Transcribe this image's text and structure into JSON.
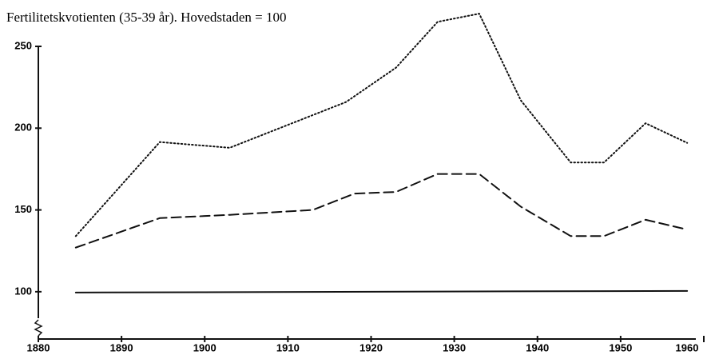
{
  "chart_data": {
    "type": "line",
    "title": "Fertilitetskvotienten (35-39 år). Hovedstaden = 100",
    "xlim": [
      1880,
      1960
    ],
    "xticks": [
      1880,
      1890,
      1900,
      1910,
      1920,
      1930,
      1940,
      1950,
      1960
    ],
    "ylim": [
      75,
      250
    ],
    "yticks": [
      100,
      150,
      200,
      250
    ],
    "series": [
      {
        "color": "#111111",
        "dash": "dotted",
        "x": [
          1884.5,
          1894.6,
          1903,
          1913,
          1917,
          1923,
          1928,
          1933,
          1938,
          1944,
          1948,
          1953,
          1958
        ],
        "values": [
          134,
          191.5,
          188,
          208,
          216,
          237,
          265,
          270,
          217,
          179,
          179,
          203,
          191
        ]
      },
      {
        "color": "#111111",
        "dash": "dashed",
        "x": [
          1884.5,
          1889,
          1894.6,
          1903,
          1913,
          1918,
          1923,
          1928,
          1933,
          1938,
          1944,
          1948,
          1953,
          1958
        ],
        "values": [
          127,
          135,
          145,
          147,
          150,
          160,
          161,
          172,
          172,
          152,
          134,
          134,
          144,
          138
        ]
      },
      {
        "color": "#111111",
        "dash": "solid",
        "x": [
          1884.5,
          1958
        ],
        "values": [
          99.5,
          100.5
        ]
      }
    ]
  }
}
